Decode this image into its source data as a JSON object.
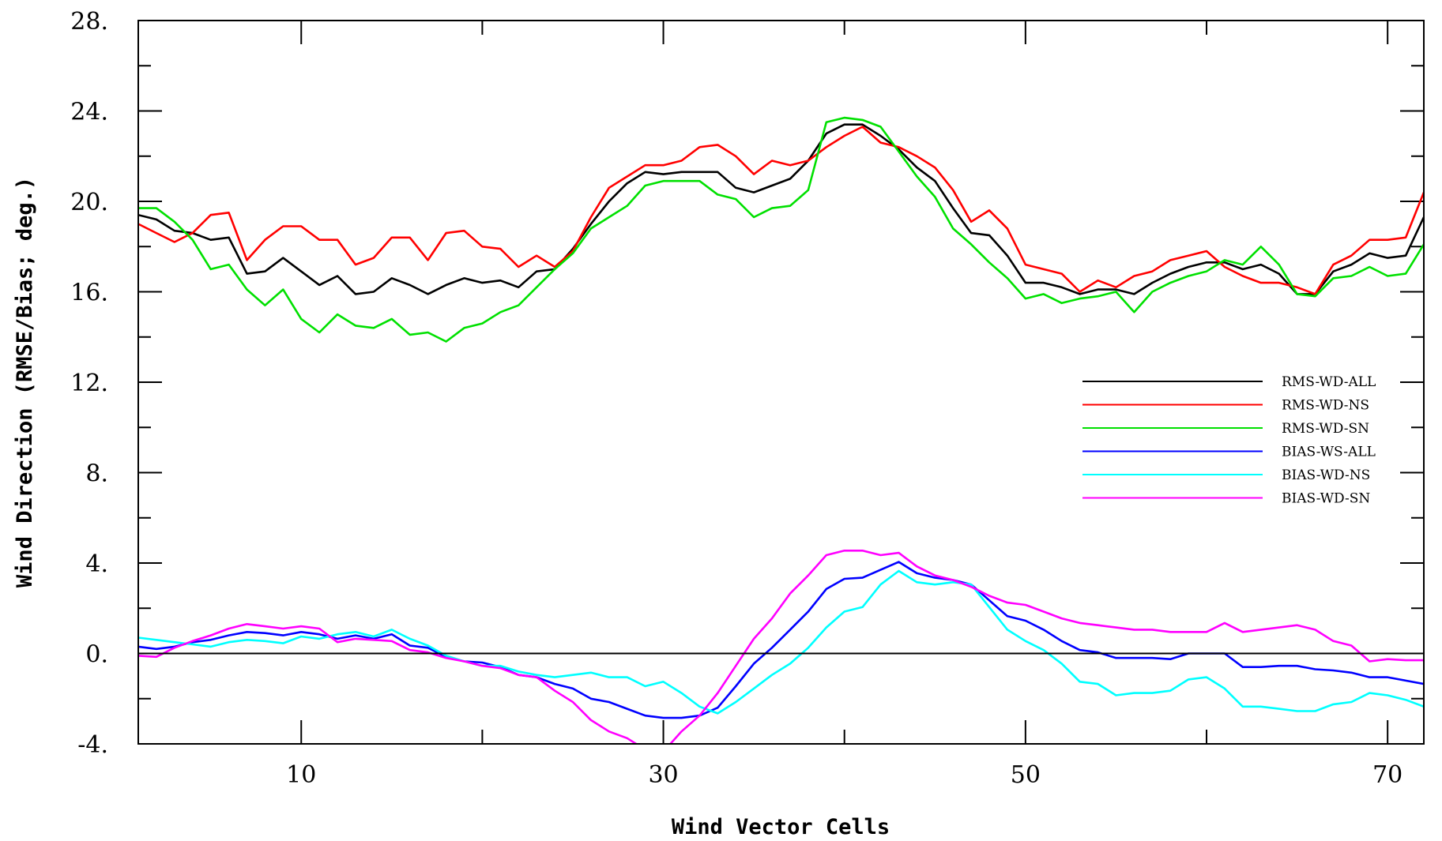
{
  "chart_data": {
    "type": "line",
    "xlabel": "Wind Vector Cells",
    "ylabel": "Wind Direction (RMSE/Bias; deg.)",
    "xlim": [
      1,
      72
    ],
    "ylim": [
      -4,
      28
    ],
    "x_ticks": [
      10,
      30,
      50,
      70
    ],
    "x_tick_labels": [
      "10",
      "30",
      "50",
      "70"
    ],
    "y_ticks": [
      -4,
      0,
      4,
      8,
      12,
      16,
      20,
      24,
      28
    ],
    "y_tick_labels": [
      "-4.",
      "0.",
      "4.",
      "8.",
      "12.",
      "16.",
      "20.",
      "24.",
      "28."
    ],
    "zero_line": true,
    "legend_position": "right",
    "colors": {
      "RMS-WD-ALL": "#000000",
      "RMS-WD-NS": "#ff0000",
      "RMS-WD-SN": "#00e000",
      "BIAS-WS-ALL": "#0000ff",
      "BIAS-WD-NS": "#00ffff",
      "BIAS-WD-SN": "#ff00ff"
    },
    "series": [
      {
        "name": "RMS-WD-ALL",
        "values": [
          19.4,
          19.2,
          18.7,
          18.6,
          18.3,
          18.4,
          16.8,
          16.9,
          17.5,
          16.9,
          16.3,
          16.7,
          15.9,
          16.0,
          16.6,
          16.3,
          15.9,
          16.3,
          16.6,
          16.4,
          16.5,
          16.2,
          16.9,
          17.0,
          17.9,
          19.0,
          20.0,
          20.8,
          21.3,
          21.2,
          21.3,
          21.3,
          21.3,
          20.6,
          20.4,
          20.7,
          21.0,
          21.8,
          23.0,
          23.4,
          23.4,
          22.9,
          22.3,
          21.5,
          20.9,
          19.7,
          18.6,
          18.5,
          17.6,
          16.4,
          16.4,
          16.2,
          15.9,
          16.1,
          16.1,
          15.9,
          16.4,
          16.8,
          17.1,
          17.3,
          17.3,
          17.0,
          17.2,
          16.8,
          15.9,
          15.9,
          16.9,
          17.2,
          17.7,
          17.5,
          17.6,
          19.3
        ]
      },
      {
        "name": "RMS-WD-NS",
        "values": [
          19.0,
          18.6,
          18.2,
          18.6,
          19.4,
          19.5,
          17.4,
          18.3,
          18.9,
          18.9,
          18.3,
          18.3,
          17.2,
          17.5,
          18.4,
          18.4,
          17.4,
          18.6,
          18.7,
          18.0,
          17.9,
          17.1,
          17.6,
          17.1,
          17.8,
          19.3,
          20.6,
          21.1,
          21.6,
          21.6,
          21.8,
          22.4,
          22.5,
          22.0,
          21.2,
          21.8,
          21.6,
          21.8,
          22.4,
          22.9,
          23.3,
          22.6,
          22.4,
          22.0,
          21.5,
          20.5,
          19.1,
          19.6,
          18.8,
          17.2,
          17.0,
          16.8,
          16.0,
          16.5,
          16.2,
          16.7,
          16.9,
          17.4,
          17.6,
          17.8,
          17.1,
          16.7,
          16.4,
          16.4,
          16.2,
          15.9,
          17.2,
          17.6,
          18.3,
          18.3,
          18.4,
          20.4
        ]
      },
      {
        "name": "RMS-WD-SN",
        "values": [
          19.7,
          19.7,
          19.1,
          18.3,
          17.0,
          17.2,
          16.1,
          15.4,
          16.1,
          14.8,
          14.2,
          15.0,
          14.5,
          14.4,
          14.8,
          14.1,
          14.2,
          13.8,
          14.4,
          14.6,
          15.1,
          15.4,
          16.2,
          17.0,
          17.7,
          18.8,
          19.3,
          19.8,
          20.7,
          20.9,
          20.9,
          20.9,
          20.3,
          20.1,
          19.3,
          19.7,
          19.8,
          20.5,
          23.5,
          23.7,
          23.6,
          23.3,
          22.2,
          21.1,
          20.2,
          18.8,
          18.1,
          17.3,
          16.6,
          15.7,
          15.9,
          15.5,
          15.7,
          15.8,
          16.0,
          15.1,
          16.0,
          16.4,
          16.7,
          16.9,
          17.4,
          17.2,
          18.0,
          17.2,
          15.9,
          15.8,
          16.6,
          16.7,
          17.1,
          16.7,
          16.8,
          18.1
        ]
      },
      {
        "name": "BIAS-WS-ALL",
        "values": [
          0.3,
          0.2,
          0.3,
          0.5,
          0.6,
          0.8,
          0.95,
          0.9,
          0.8,
          0.95,
          0.85,
          0.65,
          0.8,
          0.65,
          0.85,
          0.35,
          0.25,
          -0.15,
          -0.35,
          -0.4,
          -0.6,
          -0.95,
          -1.05,
          -1.35,
          -1.55,
          -2.0,
          -2.15,
          -2.45,
          -2.75,
          -2.85,
          -2.85,
          -2.75,
          -2.4,
          -1.45,
          -0.45,
          0.25,
          1.05,
          1.85,
          2.85,
          3.3,
          3.35,
          3.7,
          4.05,
          3.55,
          3.35,
          3.25,
          3.05,
          2.35,
          1.65,
          1.45,
          1.05,
          0.55,
          0.15,
          0.05,
          -0.2,
          -0.2,
          -0.2,
          -0.25,
          0.0,
          0.0,
          0.0,
          -0.6,
          -0.6,
          -0.55,
          -0.55,
          -0.7,
          -0.75,
          -0.85,
          -1.05,
          -1.05,
          -1.2,
          -1.35
        ]
      },
      {
        "name": "BIAS-WD-NS",
        "values": [
          0.7,
          0.6,
          0.5,
          0.4,
          0.3,
          0.5,
          0.6,
          0.55,
          0.45,
          0.75,
          0.65,
          0.85,
          0.95,
          0.75,
          1.05,
          0.65,
          0.35,
          -0.1,
          -0.35,
          -0.55,
          -0.55,
          -0.8,
          -0.95,
          -1.05,
          -0.95,
          -0.85,
          -1.05,
          -1.05,
          -1.45,
          -1.25,
          -1.75,
          -2.35,
          -2.65,
          -2.15,
          -1.55,
          -0.95,
          -0.45,
          0.25,
          1.15,
          1.85,
          2.05,
          3.05,
          3.65,
          3.15,
          3.05,
          3.15,
          3.05,
          2.05,
          1.05,
          0.55,
          0.15,
          -0.45,
          -1.25,
          -1.35,
          -1.85,
          -1.75,
          -1.75,
          -1.65,
          -1.15,
          -1.05,
          -1.55,
          -2.35,
          -2.35,
          -2.45,
          -2.55,
          -2.55,
          -2.25,
          -2.15,
          -1.75,
          -1.85,
          -2.05,
          -2.35
        ]
      },
      {
        "name": "BIAS-WD-SN",
        "values": [
          -0.1,
          -0.15,
          0.25,
          0.55,
          0.8,
          1.1,
          1.3,
          1.2,
          1.1,
          1.2,
          1.1,
          0.5,
          0.65,
          0.6,
          0.55,
          0.15,
          0.05,
          -0.2,
          -0.35,
          -0.55,
          -0.65,
          -0.95,
          -1.05,
          -1.65,
          -2.15,
          -2.95,
          -3.45,
          -3.75,
          -4.25,
          -4.35,
          -3.45,
          -2.75,
          -1.75,
          -0.55,
          0.65,
          1.55,
          2.65,
          3.45,
          4.35,
          4.55,
          4.55,
          4.35,
          4.45,
          3.85,
          3.45,
          3.25,
          2.95,
          2.55,
          2.25,
          2.15,
          1.85,
          1.55,
          1.35,
          1.25,
          1.15,
          1.05,
          1.05,
          0.95,
          0.95,
          0.95,
          1.35,
          0.95,
          1.05,
          1.15,
          1.25,
          1.05,
          0.55,
          0.35,
          -0.35,
          -0.25,
          -0.3,
          -0.3
        ]
      }
    ]
  }
}
